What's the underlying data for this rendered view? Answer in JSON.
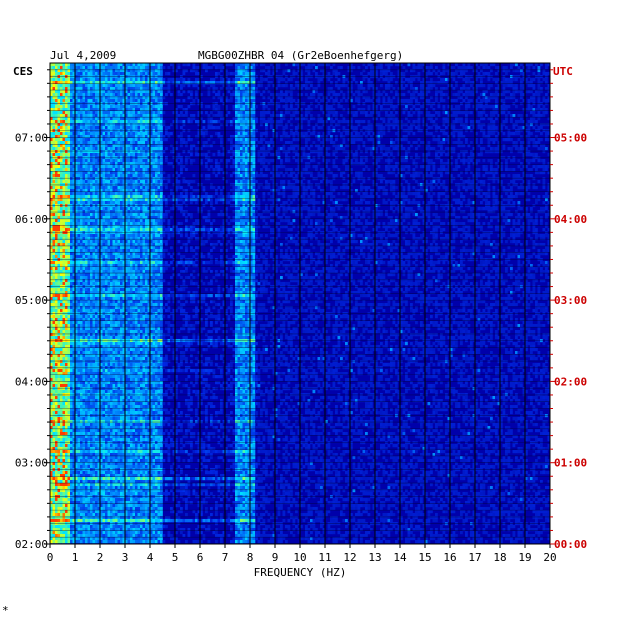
{
  "chart_data": {
    "type": "heatmap",
    "title": "Jul 4,2009",
    "station_overlay": "MGBG00ZHBR 04 (Gr2eBoenhefgerg)",
    "xlabel": "FREQUENCY (HZ)",
    "x_ticks": [
      "0",
      "1",
      "2",
      "3",
      "4",
      "5",
      "6",
      "7",
      "8",
      "9",
      "10",
      "11",
      "12",
      "13",
      "14",
      "15",
      "16",
      "17",
      "18",
      "19",
      "20"
    ],
    "xlim": [
      0,
      20
    ],
    "left_axis_label": "CES",
    "right_axis_label": "UTC",
    "left_ticks": [
      "07:00",
      "06:00",
      "05:00",
      "04:00",
      "03:00",
      "02:00"
    ],
    "right_ticks": [
      "05:00",
      "04:00",
      "03:00",
      "02:00",
      "01:00",
      "00:00"
    ],
    "time_range_local": [
      "02:00",
      "07:55"
    ],
    "colors": {
      "background": "#0000aa",
      "grid": "#000000",
      "left_axis_text": "#000000",
      "right_axis_text": "#cc0000",
      "low": "#0000cc",
      "mid": "#00c8ff",
      "high": "#ffff00",
      "peak": "#ff3300"
    },
    "energy_bands_hz": [
      {
        "from": 0.0,
        "to": 0.8,
        "level": "high"
      },
      {
        "from": 0.8,
        "to": 4.5,
        "level": "mid"
      },
      {
        "from": 7.4,
        "to": 8.2,
        "level": "mid"
      },
      {
        "from": 8.2,
        "to": 20.0,
        "level": "low"
      }
    ]
  },
  "footer_mark": "*"
}
